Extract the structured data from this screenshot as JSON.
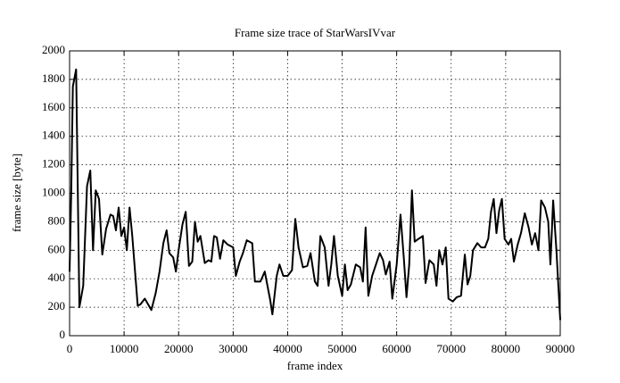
{
  "chart_data": {
    "type": "line",
    "title": "Frame size trace of StarWarsIVvar",
    "xlabel": "frame index",
    "ylabel": "frame size [byte]",
    "xlim": [
      0,
      90000
    ],
    "xticks": [
      0,
      10000,
      20000,
      30000,
      40000,
      50000,
      60000,
      70000,
      80000,
      90000
    ],
    "ylim": [
      0,
      2000
    ],
    "yticks": [
      0,
      200,
      400,
      600,
      800,
      1000,
      1200,
      1400,
      1600,
      1800,
      2000
    ],
    "grid": true,
    "x": [
      0,
      300,
      600,
      1200,
      1800,
      2500,
      3200,
      3800,
      4300,
      4800,
      5400,
      6000,
      6700,
      7500,
      8000,
      8500,
      9000,
      9500,
      10000,
      10500,
      11000,
      11500,
      12500,
      13000,
      13800,
      15000,
      15800,
      16500,
      17200,
      17800,
      18300,
      19000,
      19500,
      20000,
      20700,
      21300,
      21900,
      22500,
      23000,
      23500,
      24000,
      24800,
      25500,
      26000,
      26500,
      27000,
      27600,
      28200,
      29000,
      30000,
      30500,
      31200,
      31800,
      32500,
      33500,
      34000,
      35000,
      35800,
      36800,
      37200,
      38000,
      38500,
      39200,
      40000,
      40800,
      41400,
      42000,
      42800,
      43600,
      44200,
      45000,
      45500,
      46000,
      46800,
      47500,
      48000,
      48500,
      49200,
      50000,
      50500,
      51000,
      51600,
      52500,
      53300,
      53800,
      54300,
      54800,
      55500,
      56200,
      56900,
      57500,
      58000,
      58700,
      59200,
      60000,
      60700,
      61300,
      61800,
      62300,
      62800,
      63300,
      64000,
      64800,
      65300,
      66000,
      66800,
      67300,
      67800,
      68400,
      69000,
      69500,
      70300,
      71000,
      71800,
      72500,
      73000,
      73500,
      74000,
      74800,
      75500,
      76200,
      76800,
      77300,
      77800,
      78300,
      78800,
      79300,
      79800,
      80500,
      81000,
      81500,
      82200,
      82800,
      83500,
      84200,
      84800,
      85400,
      86000,
      86500,
      87200,
      87800,
      88200,
      88700,
      89300,
      90000
    ],
    "series": [
      {
        "name": "StarWarsIVvar",
        "color": "#000000",
        "values": [
          450,
          1000,
          1750,
          1870,
          200,
          350,
          1050,
          1160,
          600,
          1020,
          960,
          570,
          750,
          850,
          840,
          740,
          900,
          700,
          760,
          600,
          900,
          700,
          210,
          220,
          260,
          180,
          300,
          450,
          650,
          740,
          580,
          550,
          450,
          600,
          780,
          870,
          490,
          520,
          800,
          660,
          700,
          510,
          530,
          520,
          700,
          690,
          540,
          670,
          640,
          620,
          420,
          520,
          580,
          670,
          650,
          380,
          380,
          450,
          250,
          150,
          420,
          500,
          420,
          420,
          460,
          820,
          620,
          480,
          490,
          580,
          380,
          350,
          700,
          620,
          350,
          500,
          700,
          420,
          280,
          500,
          320,
          360,
          500,
          480,
          380,
          760,
          280,
          420,
          500,
          580,
          530,
          430,
          520,
          260,
          500,
          850,
          550,
          270,
          500,
          1020,
          660,
          680,
          700,
          370,
          530,
          500,
          350,
          600,
          500,
          620,
          260,
          240,
          270,
          280,
          570,
          360,
          420,
          600,
          650,
          620,
          620,
          680,
          870,
          960,
          720,
          880,
          960,
          680,
          640,
          680,
          520,
          640,
          720,
          860,
          760,
          640,
          720,
          600,
          950,
          900,
          800,
          500,
          950,
          600,
          110
        ]
      }
    ]
  }
}
